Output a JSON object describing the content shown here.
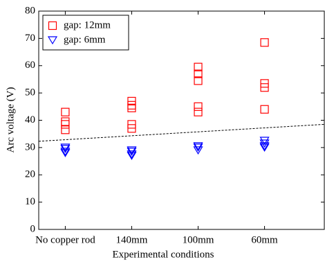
{
  "chart_data": {
    "type": "scatter",
    "x_label": "Experimental conditions",
    "y_label": "Arc voltage (V)",
    "xlim": [
      0.6,
      4.9
    ],
    "ylim": [
      0,
      80
    ],
    "xticks": [
      {
        "value": 1,
        "label": "No copper rod"
      },
      {
        "value": 2,
        "label": "140mm"
      },
      {
        "value": 3,
        "label": "100mm"
      },
      {
        "value": 4,
        "label": "60mm"
      }
    ],
    "yticks": [
      0,
      10,
      20,
      30,
      40,
      50,
      60,
      70,
      80
    ],
    "legend": "upper left",
    "series": [
      {
        "name": "gap: 12mm",
        "color": "#ff0000",
        "marker": "square",
        "x": [
          1,
          1,
          1,
          1,
          2,
          2,
          2,
          2,
          2,
          3,
          3,
          3,
          3,
          3,
          4,
          4,
          4,
          4
        ],
        "values": [
          43,
          39.5,
          38.5,
          36.5,
          47,
          45.5,
          44.5,
          38.5,
          37,
          59.5,
          57,
          54.5,
          45,
          43,
          68.5,
          53.5,
          52,
          44
        ]
      },
      {
        "name": "gap: 6mm",
        "color": "#0000ff",
        "marker": "triangle-down",
        "x": [
          1,
          1,
          1,
          1,
          2,
          2,
          2,
          2,
          3,
          3,
          3,
          4,
          4,
          4,
          4
        ],
        "values": [
          30,
          29.5,
          28.5,
          28,
          29,
          28.5,
          27.5,
          27,
          30.5,
          30,
          29,
          32.5,
          31.5,
          30.5,
          30
        ]
      }
    ],
    "trend_line": {
      "x": [
        0.6,
        4.9
      ],
      "y": [
        32.3,
        38.5
      ],
      "color": "#000000"
    }
  }
}
